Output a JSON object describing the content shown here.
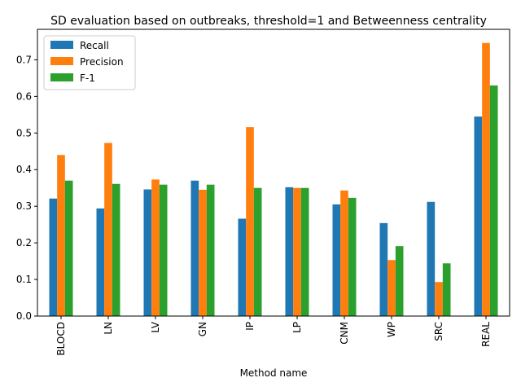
{
  "chart_data": {
    "type": "bar",
    "title": "SD evaluation based on outbreaks, threshold=1 and Betweenness centrality",
    "xlabel": "Method name",
    "ylabel": "",
    "ylim": [
      0,
      0.7833
    ],
    "yticks": [
      0.0,
      0.1,
      0.2,
      0.3,
      0.4,
      0.5,
      0.6,
      0.7
    ],
    "ytick_labels": [
      "0.0",
      "0.1",
      "0.2",
      "0.3",
      "0.4",
      "0.5",
      "0.6",
      "0.7"
    ],
    "categories": [
      "BLOCD",
      "LN",
      "LV",
      "GN",
      "IP",
      "LP",
      "CNM",
      "WP",
      "SRC",
      "REAL"
    ],
    "legend_position": "top-left",
    "grid": false,
    "series": [
      {
        "name": "Recall",
        "color": "#1f77b4",
        "values": [
          0.321,
          0.294,
          0.346,
          0.37,
          0.266,
          0.352,
          0.305,
          0.254,
          0.312,
          0.545
        ]
      },
      {
        "name": "Precision",
        "color": "#ff7f0e",
        "values": [
          0.44,
          0.473,
          0.373,
          0.345,
          0.516,
          0.35,
          0.343,
          0.153,
          0.093,
          0.746
        ]
      },
      {
        "name": "F-1",
        "color": "#2ca02c",
        "values": [
          0.37,
          0.361,
          0.359,
          0.359,
          0.35,
          0.35,
          0.323,
          0.191,
          0.144,
          0.63
        ]
      }
    ]
  }
}
